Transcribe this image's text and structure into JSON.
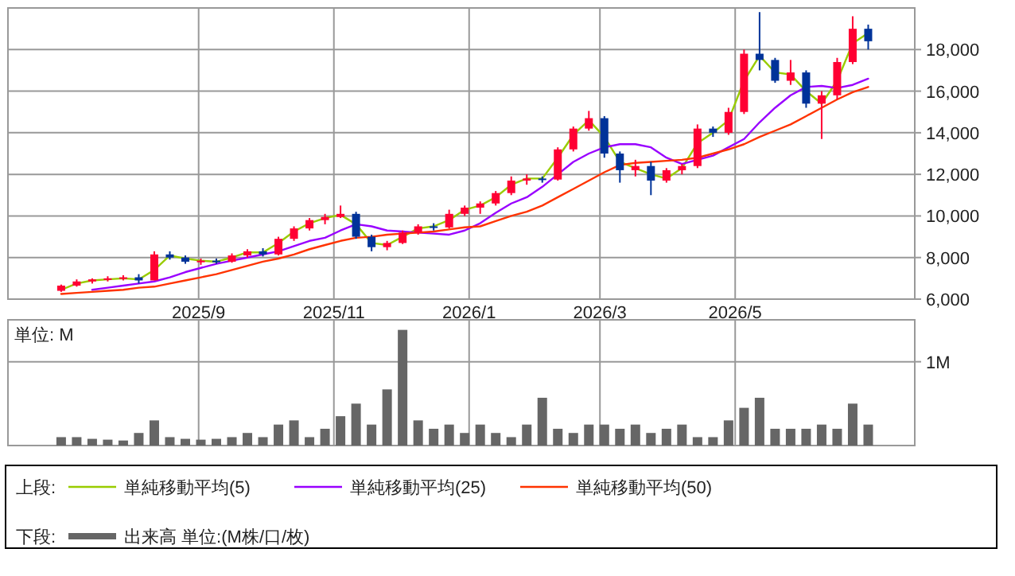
{
  "chart_data": [
    {
      "type": "candlestick",
      "legend": "bottom",
      "legend_title": "上段:",
      "grid": true,
      "xlim": [
        "2025-06-07",
        "2026-07-21"
      ],
      "xticks": [
        {
          "value": "2025-09-01",
          "label": "2025/9"
        },
        {
          "value": "2025-11-01",
          "label": "2025/11"
        },
        {
          "value": "2026-01-01",
          "label": "2026/1"
        },
        {
          "value": "2026-03-01",
          "label": "2026/3"
        },
        {
          "value": "2026-05-01",
          "label": "2026/5"
        }
      ],
      "ylim": [
        6000,
        20000
      ],
      "yticks": [
        {
          "value": 6000,
          "label": "6,000"
        },
        {
          "value": 8000,
          "label": "8,000"
        },
        {
          "value": 10000,
          "label": "10,000"
        },
        {
          "value": 12000,
          "label": "12,000"
        },
        {
          "value": 14000,
          "label": "14,000"
        },
        {
          "value": 16000,
          "label": "16,000"
        },
        {
          "value": 18000,
          "label": "18,000"
        }
      ],
      "x": [
        "2025-07-01",
        "2025-07-08",
        "2025-07-15",
        "2025-07-22",
        "2025-07-29",
        "2025-08-05",
        "2025-08-12",
        "2025-08-19",
        "2025-08-26",
        "2025-09-02",
        "2025-09-09",
        "2025-09-16",
        "2025-09-23",
        "2025-09-30",
        "2025-10-07",
        "2025-10-14",
        "2025-10-21",
        "2025-10-28",
        "2025-11-04",
        "2025-11-11",
        "2025-11-18",
        "2025-11-25",
        "2025-12-02",
        "2025-12-09",
        "2025-12-16",
        "2025-12-23",
        "2025-12-30",
        "2026-01-06",
        "2026-01-13",
        "2026-01-20",
        "2026-01-27",
        "2026-02-03",
        "2026-02-10",
        "2026-02-17",
        "2026-02-24",
        "2026-03-03",
        "2026-03-10",
        "2026-03-17",
        "2026-03-24",
        "2026-03-31",
        "2026-04-07",
        "2026-04-14",
        "2026-04-21",
        "2026-04-28",
        "2026-05-05",
        "2026-05-12",
        "2026-05-19",
        "2026-05-26",
        "2026-06-02",
        "2026-06-09",
        "2026-06-16",
        "2026-06-23",
        "2026-06-30"
      ],
      "ohlc": [
        [
          6400,
          6700,
          6350,
          6650
        ],
        [
          6650,
          6950,
          6600,
          6850
        ],
        [
          6850,
          7000,
          6750,
          6950
        ],
        [
          6950,
          7100,
          6850,
          7000
        ],
        [
          7000,
          7150,
          6900,
          7050
        ],
        [
          7050,
          7200,
          6750,
          6900
        ],
        [
          6900,
          8300,
          6900,
          8150
        ],
        [
          8150,
          8300,
          7900,
          8000
        ],
        [
          8000,
          8100,
          7700,
          7800
        ],
        [
          7800,
          7950,
          7650,
          7850
        ],
        [
          7850,
          7950,
          7700,
          7800
        ],
        [
          7800,
          8200,
          7750,
          8100
        ],
        [
          8100,
          8400,
          8000,
          8300
        ],
        [
          8300,
          8450,
          8050,
          8150
        ],
        [
          8150,
          9000,
          8100,
          8900
        ],
        [
          8900,
          9500,
          8800,
          9400
        ],
        [
          9400,
          9900,
          9300,
          9800
        ],
        [
          9800,
          10100,
          9600,
          9950
        ],
        [
          9950,
          10500,
          9900,
          10100
        ],
        [
          10100,
          10200,
          8900,
          9000
        ],
        [
          9000,
          9100,
          8300,
          8500
        ],
        [
          8500,
          8800,
          8350,
          8700
        ],
        [
          8700,
          9300,
          8650,
          9200
        ],
        [
          9200,
          9600,
          9100,
          9500
        ],
        [
          9500,
          9650,
          9300,
          9450
        ],
        [
          9450,
          10300,
          9400,
          10100
        ],
        [
          10100,
          10500,
          10000,
          10400
        ],
        [
          10400,
          10700,
          10100,
          10600
        ],
        [
          10600,
          11200,
          10500,
          11100
        ],
        [
          11100,
          11900,
          11000,
          11700
        ],
        [
          11700,
          12000,
          11500,
          11800
        ],
        [
          11800,
          11900,
          11600,
          11750
        ],
        [
          11750,
          13300,
          11700,
          13200
        ],
        [
          13200,
          14300,
          13100,
          14200
        ],
        [
          14200,
          15050,
          14100,
          14700
        ],
        [
          14700,
          14800,
          12800,
          13000
        ],
        [
          13000,
          13100,
          11600,
          12200
        ],
        [
          12200,
          12700,
          11900,
          12400
        ],
        [
          12400,
          12600,
          11000,
          11700
        ],
        [
          11700,
          12300,
          11600,
          12200
        ],
        [
          12200,
          12500,
          12000,
          12400
        ],
        [
          12400,
          14400,
          12300,
          14200
        ],
        [
          14200,
          14300,
          13800,
          14000
        ],
        [
          14000,
          15200,
          13900,
          15000
        ],
        [
          15000,
          18000,
          14900,
          17800
        ],
        [
          17800,
          19800,
          17000,
          17500
        ],
        [
          17500,
          17600,
          16400,
          16500
        ],
        [
          16500,
          17500,
          16300,
          16900
        ],
        [
          16900,
          17000,
          15200,
          15400
        ],
        [
          15400,
          16000,
          13700,
          15800
        ],
        [
          15800,
          17600,
          15600,
          17400
        ],
        [
          17400,
          19600,
          17300,
          19000
        ],
        [
          19000,
          19200,
          18000,
          18400
        ]
      ],
      "series": [
        {
          "type": "line",
          "name": "単純移動平均(5)",
          "color": "#99cc00",
          "values": [
            6450,
            6750,
            6900,
            6950,
            7000,
            6950,
            7400,
            8100,
            7950,
            7850,
            7800,
            8000,
            8250,
            8250,
            8700,
            9250,
            9650,
            9900,
            10050,
            9600,
            8700,
            8600,
            9000,
            9400,
            9500,
            9800,
            10300,
            10500,
            10900,
            11500,
            11800,
            11800,
            12800,
            13900,
            14600,
            13800,
            12600,
            12300,
            12000,
            11800,
            12300,
            13500,
            14000,
            14600,
            16500,
            17700,
            16900,
            16800,
            16000,
            15400,
            16500,
            18300,
            18800
          ]
        },
        {
          "type": "line",
          "name": "単純移動平均(25)",
          "color": "#9900ff",
          "values": [
            null,
            null,
            6450,
            6550,
            6650,
            6750,
            6850,
            7050,
            7300,
            7500,
            7700,
            7850,
            8000,
            8150,
            8300,
            8550,
            8800,
            8950,
            9300,
            9600,
            9500,
            9300,
            9250,
            9200,
            9150,
            9100,
            9300,
            9650,
            10150,
            10600,
            10900,
            11400,
            12000,
            12600,
            13000,
            13300,
            13450,
            13450,
            13300,
            12800,
            12500,
            12700,
            12900,
            13300,
            13700,
            14500,
            15200,
            15800,
            16200,
            16250,
            16150,
            16300,
            16600
          ]
        },
        {
          "type": "line",
          "name": "単純移動平均(50)",
          "color": "#ff3300",
          "values": [
            6250,
            6300,
            6350,
            6400,
            6450,
            6550,
            6600,
            6750,
            6900,
            7050,
            7200,
            7400,
            7600,
            7800,
            7950,
            8150,
            8400,
            8600,
            8800,
            8950,
            9000,
            9100,
            9150,
            9200,
            9250,
            9350,
            9450,
            9500,
            9750,
            10000,
            10200,
            10500,
            10900,
            11300,
            11700,
            12100,
            12450,
            12550,
            12600,
            12650,
            12700,
            12800,
            13000,
            13200,
            13450,
            13800,
            14100,
            14400,
            14800,
            15200,
            15600,
            15950,
            16200
          ]
        }
      ]
    },
    {
      "type": "bar",
      "legend": "bottom",
      "legend_title": "下段:",
      "grid": true,
      "tick_labels": "y",
      "annotations": [
        "単位: M"
      ],
      "xlim": [
        "2025-06-07",
        "2026-07-21"
      ],
      "xticks": [
        {
          "value": "2025-09-01",
          "label": null
        },
        {
          "value": "2025-11-01",
          "label": null
        },
        {
          "value": "2026-01-01",
          "label": null
        },
        {
          "value": "2026-03-01",
          "label": null
        },
        {
          "value": "2026-05-01",
          "label": null
        }
      ],
      "ylim": [
        0,
        1.5
      ],
      "yticks": [
        {
          "value": 1,
          "label": "1M"
        }
      ],
      "x": [
        "2025-07-01",
        "2025-07-08",
        "2025-07-15",
        "2025-07-22",
        "2025-07-29",
        "2025-08-05",
        "2025-08-12",
        "2025-08-19",
        "2025-08-26",
        "2025-09-02",
        "2025-09-09",
        "2025-09-16",
        "2025-09-23",
        "2025-09-30",
        "2025-10-07",
        "2025-10-14",
        "2025-10-21",
        "2025-10-28",
        "2025-11-04",
        "2025-11-11",
        "2025-11-18",
        "2025-11-25",
        "2025-12-02",
        "2025-12-09",
        "2025-12-16",
        "2025-12-23",
        "2025-12-30",
        "2026-01-06",
        "2026-01-13",
        "2026-01-20",
        "2026-01-27",
        "2026-02-03",
        "2026-02-10",
        "2026-02-17",
        "2026-02-24",
        "2026-03-03",
        "2026-03-10",
        "2026-03-17",
        "2026-03-24",
        "2026-03-31",
        "2026-04-07",
        "2026-04-14",
        "2026-04-21",
        "2026-04-28",
        "2026-05-05",
        "2026-05-12",
        "2026-05-19",
        "2026-05-26",
        "2026-06-02",
        "2026-06-09",
        "2026-06-16",
        "2026-06-23",
        "2026-06-30"
      ],
      "series": [
        {
          "name": "出来高 単位:(M株/口/枚)",
          "color": "#666666",
          "values": [
            0.1,
            0.1,
            0.08,
            0.07,
            0.06,
            0.15,
            0.3,
            0.1,
            0.08,
            0.07,
            0.08,
            0.1,
            0.15,
            0.1,
            0.25,
            0.3,
            0.1,
            0.2,
            0.35,
            0.5,
            0.25,
            0.67,
            1.38,
            0.3,
            0.2,
            0.25,
            0.15,
            0.25,
            0.15,
            0.1,
            0.25,
            0.57,
            0.2,
            0.15,
            0.25,
            0.25,
            0.2,
            0.25,
            0.15,
            0.2,
            0.25,
            0.1,
            0.1,
            0.3,
            0.45,
            0.57,
            0.2,
            0.2,
            0.2,
            0.25,
            0.2,
            0.5,
            0.25
          ]
        }
      ]
    }
  ]
}
